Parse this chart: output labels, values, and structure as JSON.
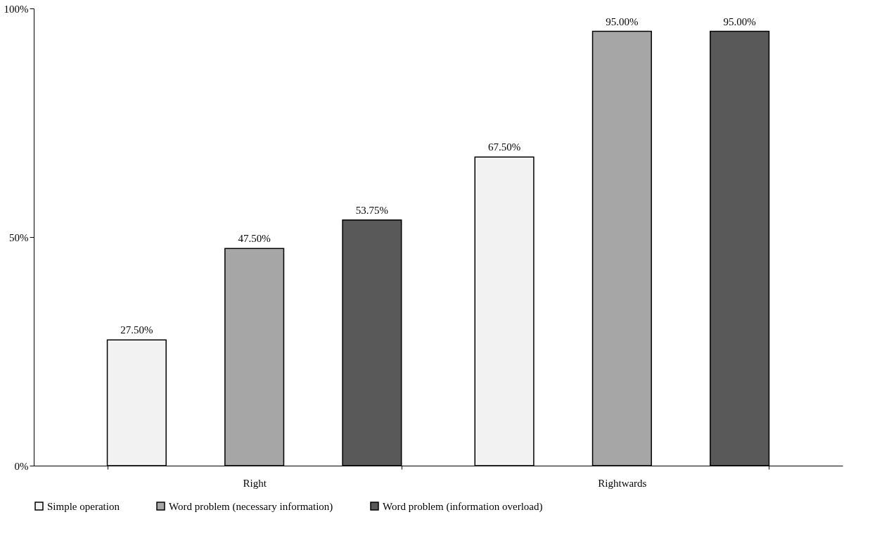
{
  "chart_data": {
    "type": "bar",
    "categories": [
      "Right",
      "Rightwards"
    ],
    "series": [
      {
        "name": "Simple operation",
        "color": "#f2f2f2",
        "values": [
          27.5,
          67.5
        ],
        "value_labels": [
          "27.50%",
          "67.50%"
        ]
      },
      {
        "name": "Word problem (necessary information)",
        "color": "#a6a6a6",
        "values": [
          47.5,
          95
        ],
        "value_labels": [
          "47.50%",
          "95.00%"
        ]
      },
      {
        "name": "Word problem (information overload)",
        "color": "#595959",
        "values": [
          53.75,
          95
        ],
        "value_labels": [
          "53.75%",
          "95.00%"
        ]
      }
    ],
    "ylim": [
      0,
      100
    ],
    "yticks": [
      {
        "value": 0,
        "label": "0%"
      },
      {
        "value": 50,
        "label": "50%"
      },
      {
        "value": 100,
        "label": "100%"
      }
    ],
    "grid": false,
    "legend": "bottom"
  }
}
